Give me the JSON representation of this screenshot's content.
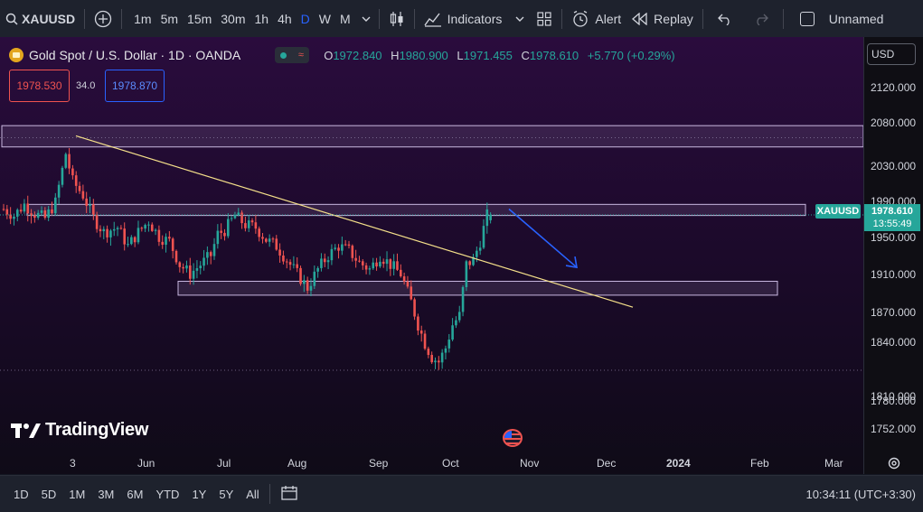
{
  "toolbar": {
    "symbol": "XAUUSD",
    "timeframes": [
      "1m",
      "5m",
      "15m",
      "30m",
      "1h",
      "4h",
      "D",
      "W",
      "M"
    ],
    "active_timeframe": "D",
    "indicators_label": "Indicators",
    "alert_label": "Alert",
    "replay_label": "Replay",
    "layout_name": "Unnamed"
  },
  "legend": {
    "title": "Gold Spot / U.S. Dollar · 1D · OANDA",
    "open_key": "O",
    "open": "1972.840",
    "high_key": "H",
    "high": "1980.900",
    "low_key": "L",
    "low": "1971.455",
    "close_key": "C",
    "close": "1978.610",
    "change": "+5.770 (+0.29%)",
    "sell_price": "1978.530",
    "spread": "34.0",
    "buy_price": "1978.870"
  },
  "currency": "USD",
  "price_axis": {
    "labels": [
      "2120.000",
      "2080.000",
      "2030.000",
      "1990.000",
      "1950.000",
      "1910.000",
      "1870.000",
      "1840.000",
      "1810.000",
      "1780.000",
      "1752.000"
    ],
    "symbol_tag": "XAUUSD",
    "last_price": "1978.610",
    "countdown": "13:55:49"
  },
  "time_axis": {
    "labels": [
      "3",
      "Jun",
      "Jul",
      "Aug",
      "Sep",
      "Oct",
      "Nov",
      "Dec",
      "2024",
      "Feb",
      "Mar"
    ]
  },
  "branding": "TradingView",
  "bottom_bar": {
    "ranges": [
      "1D",
      "5D",
      "1M",
      "3M",
      "6M",
      "YTD",
      "1Y",
      "5Y",
      "All"
    ],
    "clock": "10:34:11 (UTC+3:30)"
  },
  "colors": {
    "up": "#26a69a",
    "down": "#ef5350",
    "accent": "#2962ff",
    "trendline": "#f5e08a",
    "zone_border": "#c9b8e0"
  },
  "chart_data": {
    "type": "candlestick",
    "symbol": "XAUUSD",
    "interval": "1D",
    "x_range": [
      "May",
      "Mar"
    ],
    "ylim": [
      1740,
      2135
    ],
    "trend_points": [
      {
        "d": 0,
        "c": 1985
      },
      {
        "d": 3,
        "c": 1978
      },
      {
        "d": 6,
        "c": 1990
      },
      {
        "d": 9,
        "c": 1980
      },
      {
        "d": 12,
        "c": 1975
      },
      {
        "d": 15,
        "c": 1992
      },
      {
        "d": 18,
        "c": 2045
      },
      {
        "d": 20,
        "c": 2015
      },
      {
        "d": 23,
        "c": 2000
      },
      {
        "d": 26,
        "c": 1975
      },
      {
        "d": 29,
        "c": 1960
      },
      {
        "d": 33,
        "c": 1965
      },
      {
        "d": 36,
        "c": 1945
      },
      {
        "d": 39,
        "c": 1960
      },
      {
        "d": 42,
        "c": 1972
      },
      {
        "d": 45,
        "c": 1955
      },
      {
        "d": 48,
        "c": 1950
      },
      {
        "d": 51,
        "c": 1925
      },
      {
        "d": 54,
        "c": 1915
      },
      {
        "d": 57,
        "c": 1925
      },
      {
        "d": 60,
        "c": 1935
      },
      {
        "d": 62,
        "c": 1958
      },
      {
        "d": 64,
        "c": 1962
      },
      {
        "d": 67,
        "c": 1978
      },
      {
        "d": 70,
        "c": 1968
      },
      {
        "d": 73,
        "c": 1965
      },
      {
        "d": 76,
        "c": 1952
      },
      {
        "d": 79,
        "c": 1945
      },
      {
        "d": 82,
        "c": 1930
      },
      {
        "d": 85,
        "c": 1915
      },
      {
        "d": 88,
        "c": 1900
      },
      {
        "d": 91,
        "c": 1920
      },
      {
        "d": 94,
        "c": 1935
      },
      {
        "d": 97,
        "c": 1945
      },
      {
        "d": 100,
        "c": 1940
      },
      {
        "d": 103,
        "c": 1927
      },
      {
        "d": 106,
        "c": 1920
      },
      {
        "d": 109,
        "c": 1935
      },
      {
        "d": 112,
        "c": 1925
      },
      {
        "d": 115,
        "c": 1915
      },
      {
        "d": 118,
        "c": 1885
      },
      {
        "d": 120,
        "c": 1860
      },
      {
        "d": 122,
        "c": 1840
      },
      {
        "d": 124,
        "c": 1825
      },
      {
        "d": 126,
        "c": 1820
      },
      {
        "d": 128,
        "c": 1835
      },
      {
        "d": 130,
        "c": 1860
      },
      {
        "d": 132,
        "c": 1870
      },
      {
        "d": 134,
        "c": 1925
      },
      {
        "d": 136,
        "c": 1930
      },
      {
        "d": 138,
        "c": 1950
      },
      {
        "d": 140,
        "c": 1978
      },
      {
        "d": 141,
        "c": 1978.61
      }
    ],
    "zones": [
      {
        "low": 2052,
        "high": 2075
      },
      {
        "low": 1978,
        "high": 1990
      },
      {
        "low": 1892,
        "high": 1907
      }
    ],
    "trendline": [
      {
        "d": 18,
        "price": 2064
      },
      {
        "d": 150,
        "price": 1879
      }
    ],
    "projection_arrow": [
      {
        "d": 142,
        "price": 1985
      },
      {
        "d": 158,
        "price": 1922
      }
    ],
    "last_price": 1978.61
  }
}
